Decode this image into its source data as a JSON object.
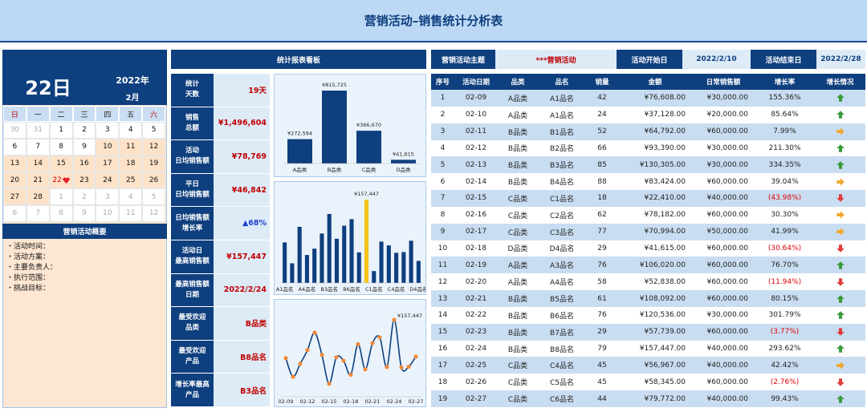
{
  "header": {
    "title": "营销活动–销售统计分析表"
  },
  "calendar": {
    "day": "22日",
    "year": "2022年",
    "month": "2月",
    "weekdays": [
      "日",
      "一",
      "二",
      "三",
      "四",
      "五",
      "六"
    ],
    "weeks": [
      [
        {
          "day": "30",
          "style": "other"
        },
        {
          "day": "31",
          "style": "other"
        },
        {
          "day": "1",
          "style": "normal"
        },
        {
          "day": "2",
          "style": "normal"
        },
        {
          "day": "3",
          "style": "normal"
        },
        {
          "day": "4",
          "style": "normal"
        },
        {
          "day": "5",
          "style": "normal"
        }
      ],
      [
        {
          "day": "6",
          "style": "normal"
        },
        {
          "day": "7",
          "style": "normal"
        },
        {
          "day": "8",
          "style": "normal"
        },
        {
          "day": "9",
          "style": "normal"
        },
        {
          "day": "10",
          "style": "active"
        },
        {
          "day": "11",
          "style": "active"
        },
        {
          "day": "12",
          "style": "active"
        }
      ],
      [
        {
          "day": "13",
          "style": "active"
        },
        {
          "day": "14",
          "style": "active"
        },
        {
          "day": "15",
          "style": "active"
        },
        {
          "day": "16",
          "style": "active"
        },
        {
          "day": "17",
          "style": "active"
        },
        {
          "day": "18",
          "style": "active"
        },
        {
          "day": "19",
          "style": "active"
        }
      ],
      [
        {
          "day": "20",
          "style": "active"
        },
        {
          "day": "21",
          "style": "active"
        },
        {
          "day": "22",
          "style": "today"
        },
        {
          "day": "23",
          "style": "active"
        },
        {
          "day": "24",
          "style": "active"
        },
        {
          "day": "25",
          "style": "active"
        },
        {
          "day": "26",
          "style": "active"
        }
      ],
      [
        {
          "day": "27",
          "style": "active"
        },
        {
          "day": "28",
          "style": "active"
        },
        {
          "day": "1",
          "style": "other"
        },
        {
          "day": "2",
          "style": "other"
        },
        {
          "day": "3",
          "style": "other"
        },
        {
          "day": "4",
          "style": "other"
        },
        {
          "day": "5",
          "style": "other"
        }
      ],
      [
        {
          "day": "6",
          "style": "other"
        },
        {
          "day": "7",
          "style": "other"
        },
        {
          "day": "8",
          "style": "other"
        },
        {
          "day": "9",
          "style": "other"
        },
        {
          "day": "10",
          "style": "other"
        },
        {
          "day": "11",
          "style": "other"
        },
        {
          "day": "12",
          "style": "other"
        }
      ]
    ]
  },
  "summary": {
    "title": "营销活动概要",
    "items": [
      "・活动时间：",
      "・活动方案：",
      "・主要负责人：",
      "・执行范围：",
      "・挑战目标："
    ]
  },
  "board": {
    "title": "统计报表看板",
    "kpis": [
      {
        "label": [
          "统计",
          "天数"
        ],
        "value": "19天",
        "color": "#c00000"
      },
      {
        "label": [
          "销售",
          "总额"
        ],
        "value": "¥1,496,604",
        "color": "#c00000"
      },
      {
        "label": [
          "活动",
          "日均销售额"
        ],
        "value": "¥78,769",
        "color": "#c00000"
      },
      {
        "label": [
          "平日",
          "日均销售额"
        ],
        "value": "¥46,842",
        "color": "#c00000"
      },
      {
        "label": [
          "日均销售额",
          "增长率"
        ],
        "value": "▲68%",
        "color": "#1f3fd0"
      },
      {
        "label": [
          "活动日",
          "最高销售额"
        ],
        "value": "¥157,447",
        "color": "#c00000"
      },
      {
        "label": [
          "最高销售额",
          "日期"
        ],
        "value": "2022/2/24",
        "color": "#c00000"
      },
      {
        "label": [
          "最受欢迎",
          "品类"
        ],
        "value": "B品类",
        "color": "#c00000"
      },
      {
        "label": [
          "最受欢迎",
          "产品"
        ],
        "value": "B8品名",
        "color": "#c00000"
      },
      {
        "label": [
          "增长率最高",
          "产品"
        ],
        "value": "B3品名",
        "color": "#c00000"
      }
    ]
  },
  "info": {
    "theme_label": "营销活动主题",
    "theme": "***营销活动",
    "start_label": "活动开始日",
    "start": "2022/2/10",
    "end_label": "活动结束日",
    "end": "2022/2/28"
  },
  "table": {
    "columns": [
      "序号",
      "活动日期",
      "品类",
      "品名",
      "销量",
      "金额",
      "日常销售额",
      "增长率",
      "增长情况"
    ],
    "rows": [
      [
        "1",
        "02-09",
        "A品类",
        "A1品名",
        "42",
        "¥76,608.00",
        "¥30,000.00",
        "155.36%"
      ],
      [
        "2",
        "02-10",
        "A品类",
        "A1品名",
        "24",
        "¥37,128.00",
        "¥20,000.00",
        "85.64%"
      ],
      [
        "3",
        "02-11",
        "B品类",
        "B1品名",
        "52",
        "¥64,792.00",
        "¥60,000.00",
        "7.99%"
      ],
      [
        "4",
        "02-12",
        "B品类",
        "B2品名",
        "66",
        "¥93,390.00",
        "¥30,000.00",
        "211.30%"
      ],
      [
        "5",
        "02-13",
        "B品类",
        "B3品名",
        "85",
        "¥130,305.00",
        "¥30,000.00",
        "334.35%"
      ],
      [
        "6",
        "02-14",
        "B品类",
        "B4品名",
        "88",
        "¥83,424.00",
        "¥60,000.00",
        "39.04%"
      ],
      [
        "7",
        "02-15",
        "C品类",
        "C1品名",
        "18",
        "¥22,410.00",
        "¥40,000.00",
        "(43.98%)"
      ],
      [
        "8",
        "02-16",
        "C品类",
        "C2品名",
        "62",
        "¥78,182.00",
        "¥60,000.00",
        "30.30%"
      ],
      [
        "9",
        "02-17",
        "C品类",
        "C3品名",
        "77",
        "¥70,994.00",
        "¥50,000.00",
        "41.99%"
      ],
      [
        "10",
        "02-18",
        "D品类",
        "D4品名",
        "29",
        "¥41,615.00",
        "¥60,000.00",
        "(30.64%)"
      ],
      [
        "11",
        "02-19",
        "A品类",
        "A3品名",
        "76",
        "¥106,020.00",
        "¥60,000.00",
        "76.70%"
      ],
      [
        "12",
        "02-20",
        "A品类",
        "A4品名",
        "58",
        "¥52,838.00",
        "¥60,000.00",
        "(11.94%)"
      ],
      [
        "13",
        "02-21",
        "B品类",
        "B5品名",
        "61",
        "¥108,092.00",
        "¥60,000.00",
        "80.15%"
      ],
      [
        "14",
        "02-22",
        "B品类",
        "B6品名",
        "76",
        "¥120,536.00",
        "¥30,000.00",
        "301.79%"
      ],
      [
        "15",
        "02-23",
        "B品类",
        "B7品名",
        "29",
        "¥57,739.00",
        "¥60,000.00",
        "(3.77%)"
      ],
      [
        "16",
        "02-24",
        "B品类",
        "B8品名",
        "79",
        "¥157,447.00",
        "¥40,000.00",
        "293.62%"
      ],
      [
        "17",
        "02-25",
        "C品类",
        "C4品名",
        "45",
        "¥56,967.00",
        "¥40,000.00",
        "42.42%"
      ],
      [
        "18",
        "02-26",
        "C品类",
        "C5品名",
        "45",
        "¥58,345.00",
        "¥60,000.00",
        "(2.76%)"
      ],
      [
        "19",
        "02-27",
        "C品类",
        "C6品名",
        "44",
        "¥79,772.00",
        "¥40,000.00",
        "99.43%"
      ]
    ],
    "trends": [
      "up",
      "up",
      "right",
      "up",
      "up",
      "right",
      "down",
      "right",
      "right",
      "down",
      "up",
      "down",
      "up",
      "up",
      "down",
      "up",
      "right",
      "down",
      "up"
    ]
  },
  "chart_data": [
    {
      "type": "bar",
      "categories": [
        "A品类",
        "B品类",
        "C品类",
        "D品类"
      ],
      "values": [
        272594,
        815725,
        366670,
        41615
      ],
      "value_labels": [
        "¥272,594",
        "¥815,725",
        "¥366,670",
        "¥41,615"
      ],
      "color": "#0e3f7e"
    },
    {
      "type": "bar",
      "categories": [
        "A1品名",
        null,
        null,
        "A4品名",
        null,
        null,
        "B3品名",
        null,
        null,
        "B6品名",
        null,
        null,
        "C1品名",
        null,
        null,
        "C4品名",
        null,
        null,
        "D4品名"
      ],
      "values": [
        76608,
        37128,
        106020,
        52838,
        64792,
        93390,
        130305,
        83424,
        108092,
        120536,
        57739,
        157447,
        22410,
        78182,
        70994,
        56967,
        58345,
        79772,
        41615
      ],
      "value_labels": [
        null,
        null,
        null,
        null,
        null,
        null,
        null,
        null,
        null,
        null,
        null,
        "¥157,447",
        null,
        null,
        null,
        null,
        null,
        null,
        null
      ],
      "colors": [
        "#0e3f7e",
        "#0e3f7e",
        "#0e3f7e",
        "#0e3f7e",
        "#0e3f7e",
        "#0e3f7e",
        "#0e3f7e",
        "#0e3f7e",
        "#0e3f7e",
        "#0e3f7e",
        "#0e3f7e",
        "#f5c518",
        "#0e3f7e",
        "#0e3f7e",
        "#0e3f7e",
        "#0e3f7e",
        "#0e3f7e",
        "#0e3f7e",
        "#0e3f7e"
      ]
    },
    {
      "type": "line",
      "categories": [
        "02-09",
        null,
        null,
        "02-12",
        null,
        null,
        "02-15",
        null,
        null,
        "02-18",
        null,
        null,
        "02-21",
        null,
        null,
        "02-24",
        null,
        null,
        "02-27"
      ],
      "values": [
        76608,
        37128,
        64792,
        93390,
        130305,
        83424,
        22410,
        78182,
        70994,
        41615,
        106020,
        52838,
        108092,
        120536,
        57739,
        157447,
        56967,
        58345,
        79772
      ],
      "value_labels": [
        null,
        null,
        null,
        null,
        null,
        null,
        null,
        null,
        null,
        null,
        null,
        null,
        null,
        null,
        null,
        "¥157,447",
        null,
        null,
        null
      ],
      "color": "#0e3f7e",
      "marker_color": "#f08a3c"
    }
  ]
}
